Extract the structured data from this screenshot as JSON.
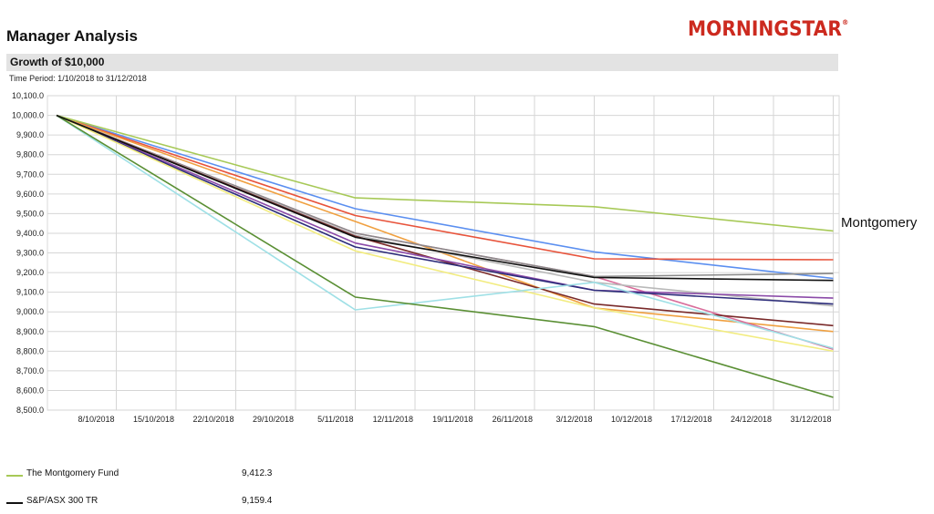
{
  "header": {
    "title": "Manager Analysis",
    "logo_text": "MORNINGSTAR",
    "logo_color": "#cc2a1f",
    "section_title": "Growth of $10,000",
    "time_period": "Time Period: 1/10/2018 to 31/12/2018"
  },
  "callout": "Montgomery",
  "legend": [
    {
      "name": "The Montgomery Fund",
      "value": "9,412.3",
      "color": "#a7c957"
    },
    {
      "name": "S&P/ASX 300 TR",
      "value": "9,159.4",
      "color": "#111111"
    }
  ],
  "chart_data": {
    "type": "line",
    "x": [
      "1/10/2018",
      "8/10/2018",
      "15/10/2018",
      "22/10/2018",
      "29/10/2018",
      "5/11/2018",
      "12/11/2018",
      "19/11/2018",
      "26/11/2018",
      "3/12/2018",
      "10/12/2018",
      "17/12/2018",
      "24/12/2018",
      "31/12/2018"
    ],
    "x_tick_labels": [
      "8/10/2018",
      "15/10/2018",
      "22/10/2018",
      "29/10/2018",
      "5/11/2018",
      "12/11/2018",
      "19/11/2018",
      "26/11/2018",
      "3/12/2018",
      "10/12/2018",
      "17/12/2018",
      "24/12/2018",
      "31/12/2018"
    ],
    "ylim": [
      8500,
      10100
    ],
    "y_ticks": [
      "10,100.0",
      "10,000.0",
      "9,900.0",
      "9,800.0",
      "9,700.0",
      "9,600.0",
      "9,500.0",
      "9,400.0",
      "9,300.0",
      "9,200.0",
      "9,100.0",
      "9,000.0",
      "8,900.0",
      "8,800.0",
      "8,700.0",
      "8,600.0",
      "8,500.0"
    ],
    "grid": true,
    "series": [
      {
        "name": "The Montgomery Fund",
        "color": "#a7c957",
        "points": [
          [
            "1/10/2018",
            10000
          ],
          [
            "5/11/2018",
            9580
          ],
          [
            "3/12/2018",
            9535
          ],
          [
            "31/12/2018",
            9412
          ]
        ]
      },
      {
        "color": "#5b8ff0",
        "points": [
          [
            "1/10/2018",
            10000
          ],
          [
            "5/11/2018",
            9525
          ],
          [
            "3/12/2018",
            9305
          ],
          [
            "31/12/2018",
            9170
          ]
        ]
      },
      {
        "color": "#e8543c",
        "points": [
          [
            "1/10/2018",
            10000
          ],
          [
            "5/11/2018",
            9490
          ],
          [
            "3/12/2018",
            9270
          ],
          [
            "31/12/2018",
            9265
          ]
        ]
      },
      {
        "color": "#f0a040",
        "points": [
          [
            "1/10/2018",
            10000
          ],
          [
            "5/11/2018",
            9460
          ],
          [
            "3/12/2018",
            9020
          ],
          [
            "31/12/2018",
            8900
          ]
        ]
      },
      {
        "color": "#d96d9b",
        "points": [
          [
            "1/10/2018",
            10000
          ],
          [
            "5/11/2018",
            9400
          ],
          [
            "3/12/2018",
            9180
          ],
          [
            "31/12/2018",
            8810
          ]
        ]
      },
      {
        "color": "#8a8a8a",
        "points": [
          [
            "1/10/2018",
            10000
          ],
          [
            "5/11/2018",
            9400
          ],
          [
            "3/12/2018",
            9180
          ],
          [
            "31/12/2018",
            9195
          ]
        ]
      },
      {
        "color": "#b9b9b9",
        "points": [
          [
            "1/10/2018",
            10000
          ],
          [
            "5/11/2018",
            9390
          ],
          [
            "3/12/2018",
            9150
          ],
          [
            "31/12/2018",
            9030
          ]
        ]
      },
      {
        "color": "#7a2a2a",
        "points": [
          [
            "1/10/2018",
            10000
          ],
          [
            "5/11/2018",
            9385
          ],
          [
            "3/12/2018",
            9040
          ],
          [
            "31/12/2018",
            8930
          ]
        ]
      },
      {
        "color": "#8b4aa8",
        "points": [
          [
            "1/10/2018",
            10000
          ],
          [
            "5/11/2018",
            9350
          ],
          [
            "3/12/2018",
            9110
          ],
          [
            "31/12/2018",
            9070
          ]
        ]
      },
      {
        "color": "#2c2c7a",
        "points": [
          [
            "1/10/2018",
            10000
          ],
          [
            "5/11/2018",
            9330
          ],
          [
            "3/12/2018",
            9110
          ],
          [
            "31/12/2018",
            9040
          ]
        ]
      },
      {
        "name": "S&P/ASX 300 TR",
        "color": "#111111",
        "points": [
          [
            "1/10/2018",
            10000
          ],
          [
            "5/11/2018",
            9380
          ],
          [
            "3/12/2018",
            9175
          ],
          [
            "31/12/2018",
            9160
          ]
        ]
      },
      {
        "color": "#f2ec80",
        "points": [
          [
            "1/10/2018",
            10000
          ],
          [
            "5/11/2018",
            9310
          ],
          [
            "3/12/2018",
            9020
          ],
          [
            "31/12/2018",
            8800
          ]
        ]
      },
      {
        "color": "#9fe0e6",
        "points": [
          [
            "1/10/2018",
            10000
          ],
          [
            "5/11/2018",
            9010
          ],
          [
            "3/12/2018",
            9150
          ],
          [
            "31/12/2018",
            8815
          ]
        ]
      },
      {
        "color": "#5a8f34",
        "points": [
          [
            "1/10/2018",
            10000
          ],
          [
            "5/11/2018",
            9075
          ],
          [
            "3/12/2018",
            8925
          ],
          [
            "31/12/2018",
            8565
          ]
        ]
      }
    ]
  }
}
